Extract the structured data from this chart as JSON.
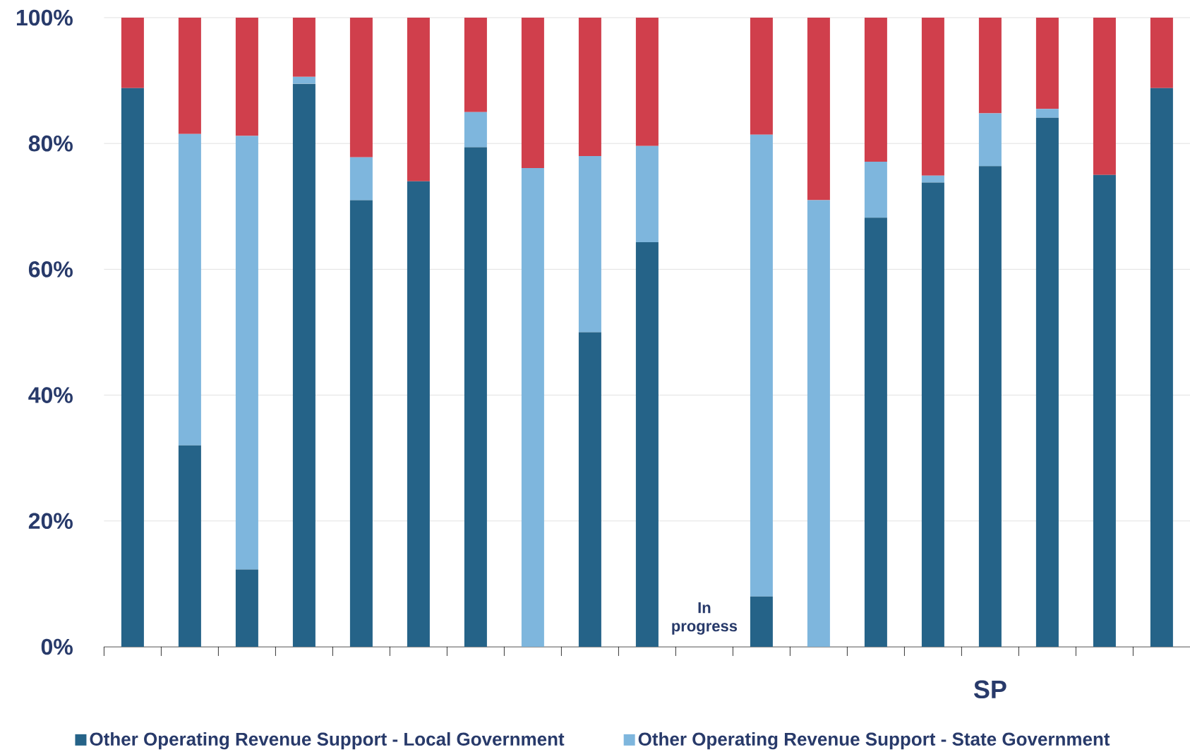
{
  "chart_data": {
    "type": "bar",
    "stacked": true,
    "categories": [
      null,
      null,
      null,
      null,
      null,
      null,
      null,
      null,
      null,
      null,
      null,
      null,
      null,
      null,
      null,
      "SP",
      null,
      null,
      null
    ],
    "series": [
      {
        "name": "Other Operating Revenue Support - Local Government",
        "color": "#256388",
        "values": [
          88.8,
          32,
          12.3,
          89.5,
          71,
          74,
          79.4,
          0,
          50,
          64.3,
          null,
          8,
          0,
          68.2,
          73.8,
          76.4,
          84.1,
          75,
          88.8
        ]
      },
      {
        "name": "Other Operating Revenue Support - State Government",
        "color": "#7eb6dd",
        "values": [
          0,
          49.5,
          68.9,
          1.1,
          6.8,
          0,
          5.6,
          76.1,
          28,
          15.3,
          null,
          73.4,
          71,
          8.9,
          1.1,
          8.4,
          1.4,
          0,
          0
        ]
      },
      {
        "color": "#d03f4c",
        "values": [
          11.2,
          18.5,
          18.8,
          9.4,
          22.2,
          26,
          15,
          23.9,
          22,
          20.4,
          null,
          18.6,
          29,
          22.9,
          25.1,
          15.2,
          14.5,
          25,
          11.2
        ]
      }
    ],
    "ylim": [
      0,
      100
    ],
    "yticks": [
      {
        "value": 0,
        "label": "0%"
      },
      {
        "value": 20,
        "label": "20%"
      },
      {
        "value": 40,
        "label": "40%"
      },
      {
        "value": 60,
        "label": "60%"
      },
      {
        "value": 80,
        "label": "80%"
      },
      {
        "value": 100,
        "label": "100%"
      }
    ],
    "grid": "y",
    "legend": "bottom",
    "annotations": [
      "In progress"
    ]
  }
}
